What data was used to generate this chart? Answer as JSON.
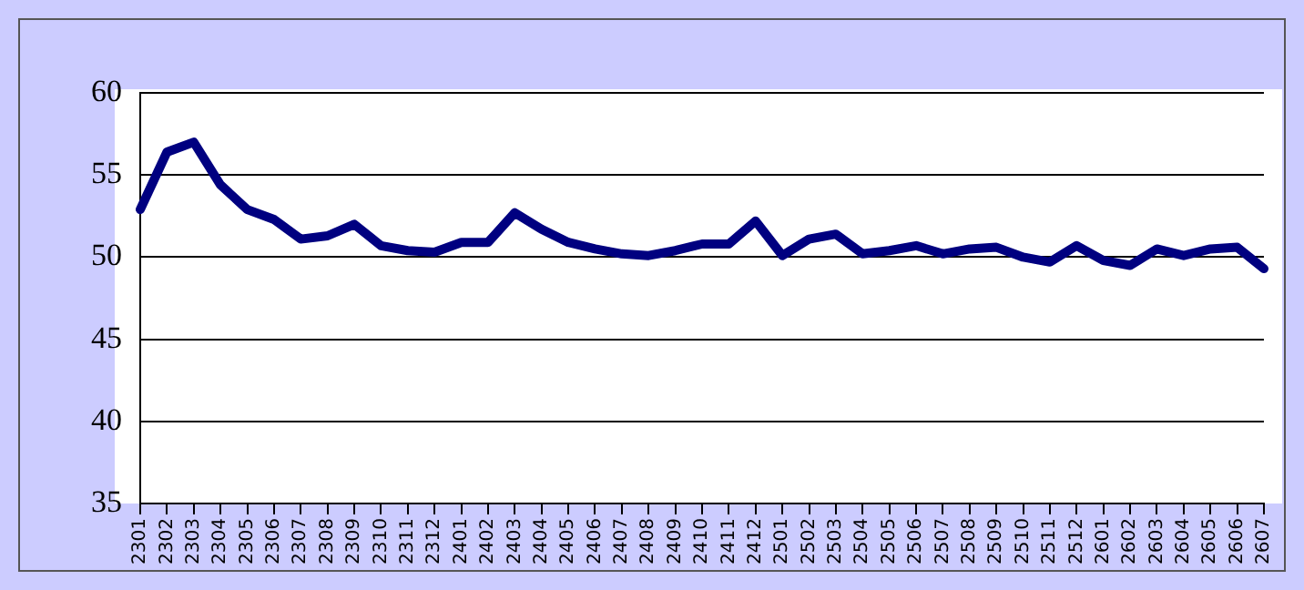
{
  "chart_data": {
    "type": "line",
    "categories": [
      "2301",
      "2302",
      "2303",
      "2304",
      "2305",
      "2306",
      "2307",
      "2308",
      "2309",
      "2310",
      "2311",
      "2312",
      "2401",
      "2402",
      "2403",
      "2404",
      "2405",
      "2406",
      "2407",
      "2408",
      "2409",
      "2410",
      "2411",
      "2412",
      "2501",
      "2502",
      "2503",
      "2504",
      "2505",
      "2506",
      "2507",
      "2508",
      "2509",
      "2510",
      "2511",
      "2512",
      "2601",
      "2602",
      "2603",
      "2604",
      "2605",
      "2606",
      "2607"
    ],
    "series": [
      {
        "color": "#000080",
        "values": [
          52.9,
          56.4,
          57.0,
          54.4,
          52.9,
          52.3,
          51.1,
          51.3,
          52.0,
          50.7,
          50.4,
          50.3,
          50.9,
          50.9,
          52.7,
          51.7,
          50.9,
          50.5,
          50.2,
          50.1,
          50.4,
          50.8,
          50.8,
          52.2,
          50.1,
          51.1,
          51.4,
          50.2,
          50.4,
          50.7,
          50.2,
          50.5,
          50.6,
          50.0,
          49.7,
          50.7,
          49.8,
          49.5,
          50.5,
          50.1,
          50.5,
          50.6,
          49.3
        ]
      }
    ],
    "ylim": [
      35,
      60
    ],
    "yticks": [
      35,
      40,
      45,
      50,
      55,
      60
    ],
    "grid": "y",
    "legend": false,
    "marker": "none",
    "line_style": "solid"
  }
}
